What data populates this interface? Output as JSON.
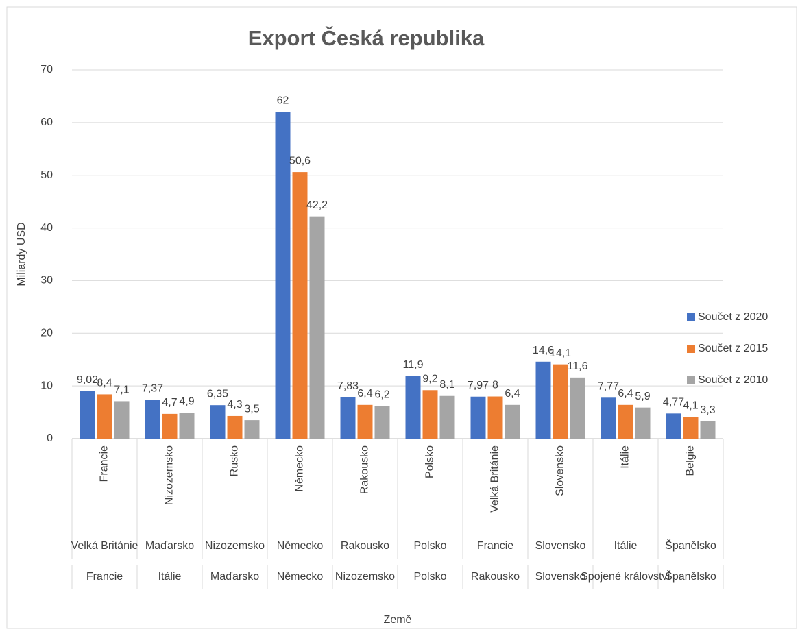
{
  "chart_data": {
    "type": "bar",
    "title": "Export Česká republika",
    "y_label": "Miliardy USD",
    "x_label": "Země",
    "categories": [
      "Francie",
      "Nizozemsko",
      "Rusko",
      "Německo",
      "Rakousko",
      "Polsko",
      "Velká Británie",
      "Slovensko",
      "Itálie",
      "Belgie"
    ],
    "categories_level2": [
      "Velká Británie",
      "Maďarsko",
      "Nizozemsko",
      "Německo",
      "Rakousko",
      "Polsko",
      "Francie",
      "Slovensko",
      "Itálie",
      "Španělsko"
    ],
    "categories_level3": [
      "Francie",
      "Itálie",
      "Maďarsko",
      "Německo",
      "Nizozemsko",
      "Polsko",
      "Rakousko",
      "Slovensko",
      "Spojené království",
      "Španělsko"
    ],
    "series": [
      {
        "name": "Součet z 2020",
        "color": "#4472c4",
        "values": [
          9.02,
          7.37,
          6.35,
          62,
          7.83,
          11.9,
          7.97,
          14.6,
          7.77,
          4.77
        ],
        "value_labels": [
          "9,02",
          "7,37",
          "6,35",
          "62",
          "7,83",
          "11,9",
          "7,97",
          "14,6",
          "7,77",
          "4,77"
        ]
      },
      {
        "name": "Součet z 2015",
        "color": "#ed7d31",
        "values": [
          8.4,
          4.7,
          4.3,
          50.6,
          6.4,
          9.2,
          8,
          14.1,
          6.4,
          4.1
        ],
        "value_labels": [
          "8,4",
          "4,7",
          "4,3",
          "50,6",
          "6,4",
          "9,2",
          "8",
          "14,1",
          "6,4",
          "4,1"
        ]
      },
      {
        "name": "Součet z 2010",
        "color": "#a5a5a5",
        "values": [
          7.1,
          4.9,
          3.5,
          42.2,
          6.2,
          8.1,
          6.4,
          11.6,
          5.9,
          3.3
        ],
        "value_labels": [
          "7,1",
          "4,9",
          "3,5",
          "42,2",
          "6,2",
          "8,1",
          "6,4",
          "11,6",
          "5,9",
          "3,3"
        ]
      }
    ],
    "ylim": [
      0,
      70
    ],
    "yticks": [
      0,
      10,
      20,
      30,
      40,
      50,
      60,
      70
    ],
    "grid": true,
    "legend": "right"
  }
}
